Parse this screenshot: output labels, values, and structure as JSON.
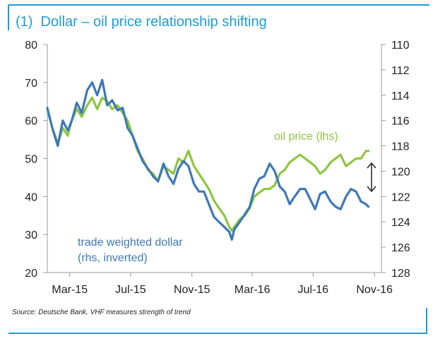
{
  "chart_data": {
    "type": "line",
    "title": "(1)  Dollar – oil price relationship shifting",
    "x_tick_labels": [
      "Mar-15",
      "Jul-15",
      "Nov-15",
      "Mar-16",
      "Jul-16",
      "Nov-16"
    ],
    "x_ticks": [
      "2015-03-01",
      "2015-07-01",
      "2015-11-01",
      "2016-03-01",
      "2016-07-01",
      "2016-11-01"
    ],
    "xlim": [
      "2015-01-15",
      "2016-11-15"
    ],
    "y_left": {
      "lim": [
        20,
        80
      ],
      "ticks": [
        20,
        30,
        40,
        50,
        60,
        70,
        80
      ]
    },
    "y_right": {
      "lim": [
        110,
        128
      ],
      "inverted": true,
      "ticks": [
        110,
        112,
        114,
        116,
        118,
        120,
        122,
        124,
        126,
        128
      ]
    },
    "grid": false,
    "annotations": {
      "oil_label": "oil price (lhs)",
      "dollar_label_line1": "trade weighted dollar",
      "dollar_label_line2": "(rhs, inverted)"
    },
    "source": "Source: Deutsche Bank, VHF measures strength of trend",
    "colors": {
      "oil": "#8dc63f",
      "dollar": "#3d78b8",
      "title": "#1f9bd7",
      "frame": "#1f9bd7"
    },
    "series": [
      {
        "name": "oil price (lhs)",
        "axis": "left",
        "x": [
          "2015-01-15",
          "2015-01-25",
          "2015-02-05",
          "2015-02-15",
          "2015-02-25",
          "2015-03-05",
          "2015-03-15",
          "2015-03-25",
          "2015-04-05",
          "2015-04-15",
          "2015-04-25",
          "2015-05-05",
          "2015-05-15",
          "2015-05-25",
          "2015-06-05",
          "2015-06-15",
          "2015-06-25",
          "2015-07-05",
          "2015-07-15",
          "2015-07-25",
          "2015-08-05",
          "2015-08-15",
          "2015-08-25",
          "2015-09-05",
          "2015-09-15",
          "2015-09-25",
          "2015-10-05",
          "2015-10-15",
          "2015-10-25",
          "2015-11-05",
          "2015-11-15",
          "2015-11-25",
          "2015-12-05",
          "2015-12-15",
          "2015-12-25",
          "2016-01-05",
          "2016-01-15",
          "2016-01-20",
          "2016-01-25",
          "2016-02-05",
          "2016-02-15",
          "2016-02-25",
          "2016-03-05",
          "2016-03-15",
          "2016-03-25",
          "2016-04-05",
          "2016-04-15",
          "2016-04-25",
          "2016-05-05",
          "2016-05-15",
          "2016-05-25",
          "2016-06-05",
          "2016-06-15",
          "2016-06-25",
          "2016-07-05",
          "2016-07-15",
          "2016-07-25",
          "2016-08-05",
          "2016-08-15",
          "2016-08-25",
          "2016-09-05",
          "2016-09-15",
          "2016-09-25",
          "2016-10-05",
          "2016-10-15",
          "2016-10-20"
        ],
        "values": [
          63,
          58,
          54,
          58,
          56,
          60,
          63,
          61,
          64,
          66,
          63,
          66,
          65,
          63,
          64,
          62,
          60,
          56,
          52,
          50,
          47,
          46,
          44,
          48,
          47,
          46,
          50,
          49,
          52,
          48,
          46,
          44,
          42,
          39,
          37,
          35,
          32,
          31,
          32,
          34,
          35,
          37,
          40,
          41,
          42,
          42,
          43,
          46,
          47,
          49,
          50,
          51,
          50,
          49,
          48,
          46,
          47,
          49,
          50,
          51,
          48,
          49,
          50,
          50,
          52,
          52
        ]
      },
      {
        "name": "trade weighted dollar (rhs, inverted)",
        "axis": "right",
        "x": [
          "2015-01-15",
          "2015-01-25",
          "2015-02-05",
          "2015-02-15",
          "2015-02-25",
          "2015-03-05",
          "2015-03-15",
          "2015-03-25",
          "2015-04-05",
          "2015-04-15",
          "2015-04-25",
          "2015-05-05",
          "2015-05-15",
          "2015-05-25",
          "2015-06-05",
          "2015-06-15",
          "2015-06-25",
          "2015-07-05",
          "2015-07-15",
          "2015-07-25",
          "2015-08-05",
          "2015-08-15",
          "2015-08-25",
          "2015-09-05",
          "2015-09-15",
          "2015-09-25",
          "2015-10-05",
          "2015-10-15",
          "2015-10-25",
          "2015-11-05",
          "2015-11-15",
          "2015-11-25",
          "2015-12-05",
          "2015-12-15",
          "2015-12-25",
          "2016-01-05",
          "2016-01-15",
          "2016-01-20",
          "2016-01-25",
          "2016-02-05",
          "2016-02-15",
          "2016-02-25",
          "2016-03-05",
          "2016-03-15",
          "2016-03-25",
          "2016-04-05",
          "2016-04-15",
          "2016-04-25",
          "2016-05-05",
          "2016-05-15",
          "2016-05-25",
          "2016-06-05",
          "2016-06-15",
          "2016-06-25",
          "2016-07-05",
          "2016-07-15",
          "2016-07-25",
          "2016-08-05",
          "2016-08-15",
          "2016-08-25",
          "2016-09-05",
          "2016-09-15",
          "2016-09-25",
          "2016-10-05",
          "2016-10-15",
          "2016-10-20"
        ],
        "values": [
          115.0,
          116.6,
          118.0,
          116.0,
          116.8,
          116.0,
          114.6,
          115.4,
          113.6,
          113.0,
          114.0,
          112.8,
          114.8,
          114.4,
          115.2,
          115.0,
          116.6,
          117.2,
          118.2,
          119.2,
          119.8,
          120.4,
          120.8,
          119.4,
          120.4,
          121.0,
          119.8,
          119.2,
          119.6,
          121.0,
          121.6,
          121.6,
          122.6,
          123.6,
          124.0,
          124.4,
          124.8,
          125.4,
          124.6,
          124.0,
          123.4,
          122.8,
          121.4,
          120.6,
          120.4,
          119.4,
          120.0,
          121.2,
          121.6,
          122.6,
          122.0,
          121.4,
          121.4,
          122.2,
          123.0,
          121.8,
          121.6,
          122.4,
          122.8,
          123.0,
          122.0,
          121.4,
          121.6,
          122.4,
          122.6,
          122.8
        ]
      }
    ]
  }
}
